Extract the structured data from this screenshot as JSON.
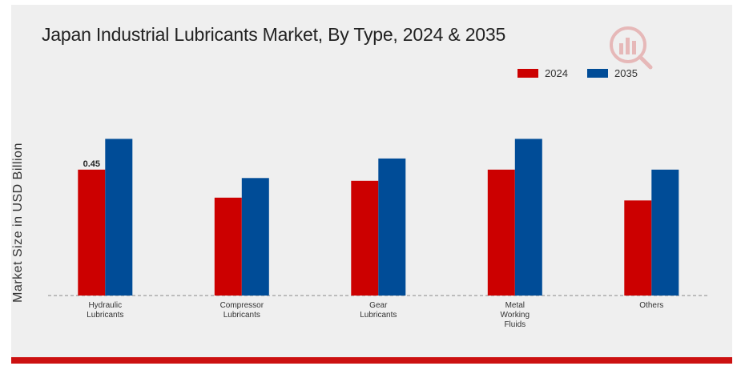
{
  "chart_data": {
    "type": "bar",
    "title": "Japan Industrial Lubricants Market, By Type, 2024 & 2035",
    "ylabel": "Market Size in USD Billion",
    "xlabel": "",
    "categories": [
      [
        "Hydraulic",
        "Lubricants"
      ],
      [
        "Compressor",
        "Lubricants"
      ],
      [
        "Gear",
        "Lubricants"
      ],
      [
        "Metal",
        "Working",
        "Fluids"
      ],
      [
        "Others"
      ]
    ],
    "series": [
      {
        "name": "2024",
        "color": "#cc0000",
        "values": [
          0.45,
          0.35,
          0.41,
          0.45,
          0.34
        ]
      },
      {
        "name": "2035",
        "color": "#004c97",
        "values": [
          0.56,
          0.42,
          0.49,
          0.56,
          0.45
        ]
      }
    ],
    "data_labels": [
      {
        "series": 0,
        "index": 0,
        "text": "0.45"
      }
    ],
    "ylim": [
      0,
      0.65
    ],
    "grid": false,
    "legend_position": "top-right"
  }
}
